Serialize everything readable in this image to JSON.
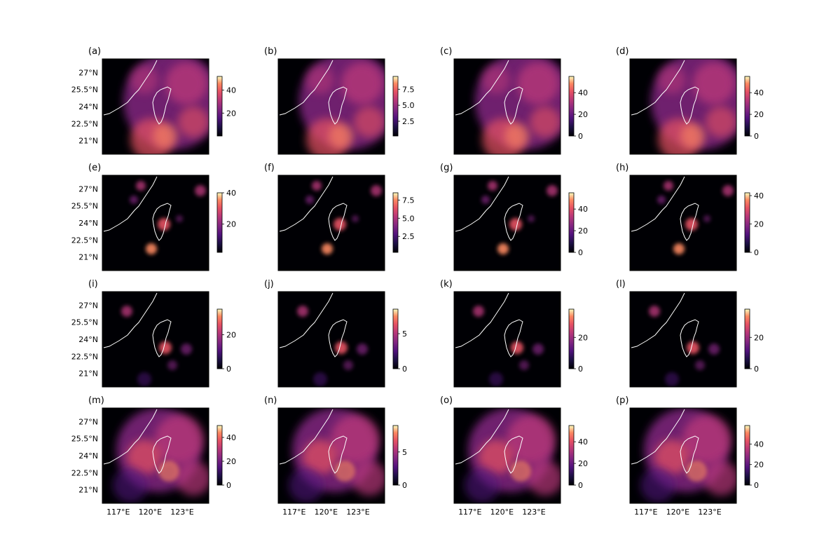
{
  "figure": {
    "lat_tick_labels": [
      "27°N",
      "25.5°N",
      "24°N",
      "22.5°N",
      "21°N"
    ],
    "lon_tick_labels": [
      "117°E",
      "120°E",
      "123°E"
    ]
  },
  "chart_data": [
    {
      "type": "heatmap",
      "label": "(a)",
      "colormap": "magma",
      "pattern": "typhoon",
      "colorbar": {
        "range": [
          0,
          52
        ],
        "ticks": [
          20,
          40
        ]
      }
    },
    {
      "type": "heatmap",
      "label": "(b)",
      "colormap": "magma",
      "pattern": "typhoon",
      "colorbar": {
        "range": [
          0.2,
          9.5
        ],
        "ticks": [
          2.5,
          5.0,
          7.5
        ],
        "tick_labels": [
          "2.5",
          "5.0",
          "7.5"
        ]
      }
    },
    {
      "type": "heatmap",
      "label": "(c)",
      "colormap": "magma",
      "pattern": "typhoon",
      "colorbar": {
        "range": [
          0,
          55
        ],
        "ticks": [
          0,
          20,
          40
        ]
      }
    },
    {
      "type": "heatmap",
      "label": "(d)",
      "colormap": "magma",
      "pattern": "typhoon",
      "colorbar": {
        "range": [
          0,
          55
        ],
        "ticks": [
          0,
          20,
          40
        ]
      }
    },
    {
      "type": "heatmap",
      "label": "(e)",
      "colormap": "magma",
      "pattern": "sparse",
      "colorbar": {
        "range": [
          2,
          40
        ],
        "ticks": [
          20,
          40
        ]
      }
    },
    {
      "type": "heatmap",
      "label": "(f)",
      "colormap": "magma",
      "pattern": "sparse",
      "colorbar": {
        "range": [
          0.3,
          8.5
        ],
        "ticks": [
          2.5,
          5.0,
          7.5
        ],
        "tick_labels": [
          "2.5",
          "5.0",
          "7.5"
        ]
      }
    },
    {
      "type": "heatmap",
      "label": "(g)",
      "colormap": "magma",
      "pattern": "sparse",
      "colorbar": {
        "range": [
          0,
          55
        ],
        "ticks": [
          0,
          20,
          40
        ]
      }
    },
    {
      "type": "heatmap",
      "label": "(h)",
      "colormap": "magma",
      "pattern": "sparse",
      "colorbar": {
        "range": [
          0,
          42
        ],
        "ticks": [
          0,
          20,
          40
        ]
      }
    },
    {
      "type": "heatmap",
      "label": "(i)",
      "colormap": "magma",
      "pattern": "strip",
      "colorbar": {
        "range": [
          0,
          35
        ],
        "ticks": [
          0,
          20
        ]
      }
    },
    {
      "type": "heatmap",
      "label": "(j)",
      "colormap": "magma",
      "pattern": "strip",
      "colorbar": {
        "range": [
          0,
          8.5
        ],
        "ticks": [
          0,
          5
        ]
      }
    },
    {
      "type": "heatmap",
      "label": "(k)",
      "colormap": "magma",
      "pattern": "strip",
      "colorbar": {
        "range": [
          0,
          38
        ],
        "ticks": [
          0,
          20
        ]
      }
    },
    {
      "type": "heatmap",
      "label": "(l)",
      "colormap": "magma",
      "pattern": "strip",
      "colorbar": {
        "range": [
          0,
          38
        ],
        "ticks": [
          0,
          20
        ]
      }
    },
    {
      "type": "heatmap",
      "label": "(m)",
      "colormap": "magma",
      "pattern": "frontal",
      "colorbar": {
        "range": [
          0,
          50
        ],
        "ticks": [
          0,
          20,
          40
        ]
      }
    },
    {
      "type": "heatmap",
      "label": "(n)",
      "colormap": "magma",
      "pattern": "frontal",
      "colorbar": {
        "range": [
          0,
          9
        ],
        "ticks": [
          0,
          5
        ]
      }
    },
    {
      "type": "heatmap",
      "label": "(o)",
      "colormap": "magma",
      "pattern": "frontal",
      "colorbar": {
        "range": [
          0,
          55
        ],
        "ticks": [
          0,
          20,
          40
        ]
      }
    },
    {
      "type": "heatmap",
      "label": "(p)",
      "colormap": "magma",
      "pattern": "frontal",
      "colorbar": {
        "range": [
          0,
          58
        ],
        "ticks": [
          0,
          20,
          40
        ]
      }
    }
  ]
}
